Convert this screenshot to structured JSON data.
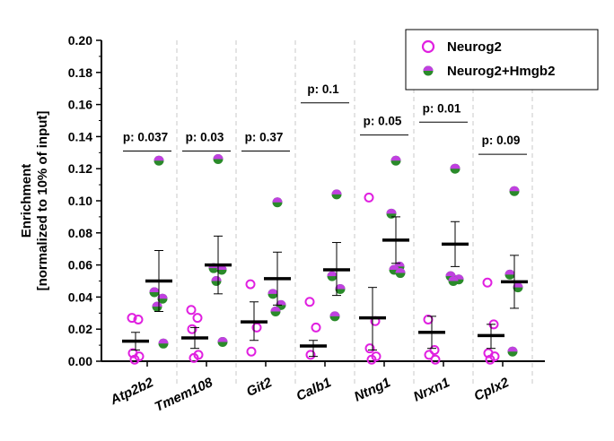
{
  "chart_data": {
    "type": "scatter",
    "ylabel_line1": "Enrichment",
    "ylabel_line2": "[normalized to 10% of input]",
    "ylim": [
      0,
      0.2
    ],
    "yticks": [
      "0.00",
      "0.02",
      "0.04",
      "0.06",
      "0.08",
      "0.10",
      "0.12",
      "0.14",
      "0.16",
      "0.18",
      "0.20"
    ],
    "legend_position": "top-right",
    "colors": {
      "neurog2": "#e020e0",
      "combo_top": "#c040e0",
      "combo_bottom": "#2a8a2a",
      "mean_bar": "#000000",
      "sep": "#c8c8c8"
    },
    "series": [
      {
        "name": "Neurog2",
        "marker": "open-circle"
      },
      {
        "name": "Neurog2+Hmgb2",
        "marker": "half-filled-circle"
      }
    ],
    "groups": [
      {
        "gene": "Atp2b2",
        "p_value": "p: 0.037",
        "bracket_y": 0.131,
        "neurog2": {
          "points": [
            0.027,
            0.026,
            0.005,
            0.003,
            0.001
          ],
          "mean": 0.0125,
          "err": [
            0.007,
            0.018
          ]
        },
        "combo": {
          "points": [
            0.125,
            0.043,
            0.039,
            0.034,
            0.011
          ],
          "mean": 0.05,
          "err": [
            0.031,
            0.069
          ]
        }
      },
      {
        "gene": "Tmem108",
        "p_value": "p: 0.03",
        "bracket_y": 0.131,
        "neurog2": {
          "points": [
            0.032,
            0.027,
            0.02,
            0.004,
            0.002
          ],
          "mean": 0.0145,
          "err": [
            0.008,
            0.021
          ]
        },
        "combo": {
          "points": [
            0.126,
            0.058,
            0.057,
            0.05,
            0.012
          ],
          "mean": 0.06,
          "err": [
            0.042,
            0.078
          ]
        }
      },
      {
        "gene": "Git2",
        "p_value": "p: 0.37",
        "bracket_y": 0.131,
        "neurog2": {
          "points": [
            0.048,
            0.021,
            0.006
          ],
          "mean": 0.0245,
          "err": [
            0.013,
            0.037
          ]
        },
        "combo": {
          "points": [
            0.099,
            0.042,
            0.035,
            0.031
          ],
          "mean": 0.0515,
          "err": [
            0.035,
            0.068
          ]
        }
      },
      {
        "gene": "Calb1",
        "p_value": "p: 0.1",
        "bracket_y": 0.161,
        "neurog2": {
          "points": [
            0.037,
            0.021,
            0.004
          ],
          "mean": 0.0095,
          "err": [
            0.003,
            0.013
          ]
        },
        "combo": {
          "points": [
            0.104,
            0.053,
            0.045,
            0.028
          ],
          "mean": 0.057,
          "err": [
            0.041,
            0.074
          ]
        }
      },
      {
        "gene": "Ntng1",
        "p_value": "p: 0.05",
        "bracket_y": 0.141,
        "neurog2": {
          "points": [
            0.102,
            0.025,
            0.008,
            0.003,
            0.001
          ],
          "mean": 0.027,
          "err": [
            0.007,
            0.046
          ]
        },
        "combo": {
          "points": [
            0.125,
            0.092,
            0.059,
            0.057,
            0.055
          ],
          "mean": 0.0755,
          "err": [
            0.061,
            0.09
          ]
        }
      },
      {
        "gene": "Nrxn1",
        "p_value": "p: 0.01",
        "bracket_y": 0.149,
        "neurog2": {
          "points": [
            0.026,
            0.007,
            0.004,
            0.001
          ],
          "mean": 0.018,
          "err": [
            0.008,
            0.028
          ]
        },
        "combo": {
          "points": [
            0.12,
            0.053,
            0.051,
            0.05
          ],
          "mean": 0.073,
          "err": [
            0.059,
            0.087
          ]
        }
      },
      {
        "gene": "Cplx2",
        "p_value": "p: 0.09",
        "bracket_y": 0.129,
        "neurog2": {
          "points": [
            0.049,
            0.023,
            0.005,
            0.003,
            0.001
          ],
          "mean": 0.016,
          "err": [
            0.008,
            0.023
          ]
        },
        "combo": {
          "points": [
            0.106,
            0.054,
            0.046,
            0.006
          ],
          "mean": 0.0495,
          "err": [
            0.033,
            0.066
          ]
        }
      }
    ]
  }
}
